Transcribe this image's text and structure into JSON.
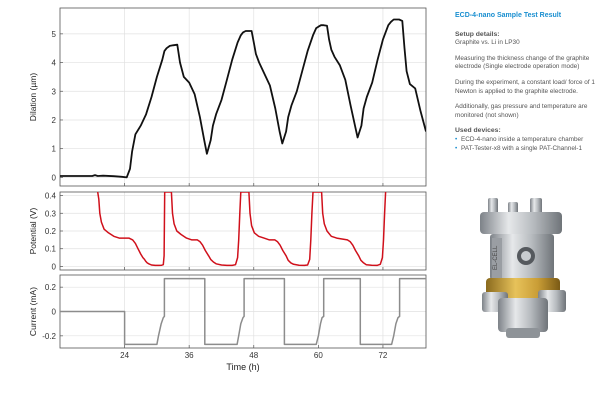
{
  "sidebar": {
    "title": "ECD-4-nano Sample Test Result",
    "setup_heading": "Setup details:",
    "setup_line": "Graphite vs. Li in LP30",
    "para1": "Measuring the thickness change of the graphite electrode (Single electrode operation mode)",
    "para2": "During the experiment, a constant load/ force of 1 Newton is applied to the graphite electrode.",
    "para3": "Additionally, gas pressure and temperature are monitored (not shown)",
    "devices_heading": "Used devices:",
    "devices": [
      "ECD-4-nano inside a temperature chamber",
      "PAT-Tester-x8 with a single PAT-Channel-1"
    ]
  },
  "device_image": {
    "label": "EL-CELL"
  },
  "colors": {
    "dilation": "#111111",
    "potential": "#d0101b",
    "current": "#8c8c8c",
    "accent": "#1a8fd0"
  },
  "chart_data": [
    {
      "type": "line",
      "ylabel": "Dilation (µm)",
      "xlim": [
        12,
        80
      ],
      "ylim": [
        -0.3,
        5.9
      ],
      "yticks": [
        0,
        1,
        2,
        3,
        4,
        5
      ],
      "grid": true,
      "series": [
        {
          "x": [
            12,
            18,
            18.5,
            19,
            20,
            22,
            23.5,
            24.4,
            25,
            25.4,
            26,
            27,
            28,
            29,
            30,
            31,
            31.4,
            31.8,
            32.4,
            33,
            33.8,
            34.3,
            35,
            36,
            37,
            38,
            38.8,
            39.3,
            40,
            40.4,
            41,
            42,
            43,
            44,
            45,
            45.6,
            46,
            46.5,
            47,
            47.6,
            48,
            48.4,
            49,
            50,
            51,
            52,
            52.8,
            53.3,
            54,
            54.4,
            55,
            56,
            57,
            58,
            59,
            59.6,
            60,
            60.5,
            61,
            61.6,
            62,
            62.4,
            63,
            64,
            65,
            66,
            66.8,
            67.3,
            68,
            68.4,
            69,
            70,
            71,
            72,
            73,
            73.5,
            74,
            74.5,
            75,
            75.6,
            76,
            76.4,
            77,
            78,
            79,
            80
          ],
          "y": [
            0.05,
            0.05,
            0.08,
            0.05,
            0.06,
            0.04,
            0.02,
            0.0,
            0.3,
            0.9,
            1.5,
            1.8,
            2.2,
            2.8,
            3.5,
            4.1,
            4.4,
            4.5,
            4.58,
            4.6,
            4.62,
            4.0,
            3.5,
            3.3,
            2.9,
            2.1,
            1.3,
            0.82,
            1.3,
            1.8,
            2.2,
            2.7,
            3.4,
            4.1,
            4.7,
            4.95,
            5.05,
            5.1,
            5.1,
            5.1,
            4.7,
            4.3,
            4.0,
            3.6,
            3.2,
            2.4,
            1.6,
            1.18,
            1.6,
            2.1,
            2.5,
            3.0,
            3.7,
            4.4,
            4.95,
            5.2,
            5.25,
            5.3,
            5.3,
            5.28,
            4.8,
            4.45,
            4.2,
            3.9,
            3.4,
            2.5,
            1.8,
            1.39,
            1.8,
            2.4,
            2.8,
            3.3,
            4.1,
            4.8,
            5.3,
            5.42,
            5.5,
            5.5,
            5.5,
            5.45,
            4.5,
            3.7,
            3.25,
            3.1,
            2.3,
            1.6
          ]
        }
      ]
    },
    {
      "type": "line",
      "ylabel": "Potential (V)",
      "xlim": [
        12,
        80
      ],
      "ylim": [
        -0.02,
        0.42
      ],
      "yticks": [
        0,
        0.1,
        0.2,
        0.3,
        0.4
      ],
      "grid": true,
      "series": [
        {
          "x": [
            19,
            19.2,
            19.4,
            19.7,
            20.2,
            21,
            22,
            23,
            24,
            24.8,
            25.5,
            26,
            26.5,
            27,
            27.4,
            27.7,
            27.9,
            28.2,
            28.5,
            29,
            29.7,
            30.4,
            30.9,
            31.2,
            31.35,
            31.45,
            32.7,
            32.9,
            33.2,
            33.7,
            34.5,
            35.5,
            36.5,
            37.5,
            38,
            38.5,
            39,
            39.6,
            40,
            40.5,
            41,
            42,
            43,
            44,
            44.6,
            45,
            45.2,
            45.4,
            45.6,
            47.1,
            47.3,
            47.6,
            48.1,
            48.9,
            49.9,
            50.9,
            51.9,
            52.4,
            52.9,
            53.4,
            54,
            54.4,
            54.9,
            55.4,
            56.4,
            57.4,
            58,
            58.4,
            58.6,
            58.8,
            59,
            60.6,
            60.8,
            61.1,
            61.6,
            62.4,
            63.4,
            64.4,
            65.4,
            65.9,
            66.4,
            66.9,
            67.5,
            67.9,
            68.4,
            68.9,
            69.9,
            70.9,
            71.5,
            71.9,
            72.1,
            72.3,
            72.5
          ],
          "y": [
            0.42,
            0.38,
            0.3,
            0.25,
            0.21,
            0.19,
            0.17,
            0.16,
            0.16,
            0.16,
            0.15,
            0.13,
            0.1,
            0.07,
            0.05,
            0.04,
            0.03,
            0.02,
            0.015,
            0.008,
            0.006,
            0.006,
            0.007,
            0.01,
            0.06,
            0.42,
            0.42,
            0.3,
            0.24,
            0.2,
            0.18,
            0.16,
            0.15,
            0.15,
            0.14,
            0.12,
            0.09,
            0.06,
            0.04,
            0.025,
            0.015,
            0.008,
            0.006,
            0.006,
            0.01,
            0.05,
            0.15,
            0.3,
            0.42,
            0.42,
            0.3,
            0.23,
            0.19,
            0.17,
            0.16,
            0.15,
            0.15,
            0.14,
            0.12,
            0.09,
            0.06,
            0.035,
            0.02,
            0.012,
            0.007,
            0.006,
            0.008,
            0.04,
            0.15,
            0.3,
            0.42,
            0.42,
            0.3,
            0.24,
            0.2,
            0.17,
            0.16,
            0.155,
            0.15,
            0.14,
            0.12,
            0.09,
            0.06,
            0.035,
            0.02,
            0.01,
            0.007,
            0.006,
            0.012,
            0.05,
            0.15,
            0.3,
            0.42
          ]
        }
      ]
    },
    {
      "type": "line",
      "ylabel": "Current (mA)",
      "xlabel": "Time (h)",
      "xlim": [
        12,
        80
      ],
      "ylim": [
        -0.3,
        0.3
      ],
      "yticks": [
        -0.2,
        0,
        0.2
      ],
      "xticks": [
        24,
        36,
        48,
        60,
        72
      ],
      "grid": true,
      "series": [
        {
          "x": [
            12,
            24,
            24,
            30,
            30.3,
            30.8,
            31.2,
            31.4,
            31.4,
            38.9,
            38.9,
            44.9,
            45.2,
            45.6,
            46,
            46.2,
            46.2,
            53.7,
            53.7,
            59.6,
            60,
            60.4,
            60.7,
            61,
            61,
            67.8,
            67.8,
            73.6,
            74,
            74.4,
            74.8,
            75.1,
            75.1,
            80
          ],
          "y": [
            0,
            0,
            -0.27,
            -0.27,
            -0.2,
            -0.1,
            -0.05,
            -0.04,
            0.27,
            0.27,
            -0.27,
            -0.27,
            -0.2,
            -0.1,
            -0.05,
            -0.04,
            0.27,
            0.27,
            -0.27,
            -0.27,
            -0.2,
            -0.1,
            -0.05,
            -0.04,
            0.27,
            0.27,
            -0.27,
            -0.27,
            -0.2,
            -0.1,
            -0.05,
            -0.04,
            0.27,
            0.27
          ]
        }
      ]
    }
  ]
}
